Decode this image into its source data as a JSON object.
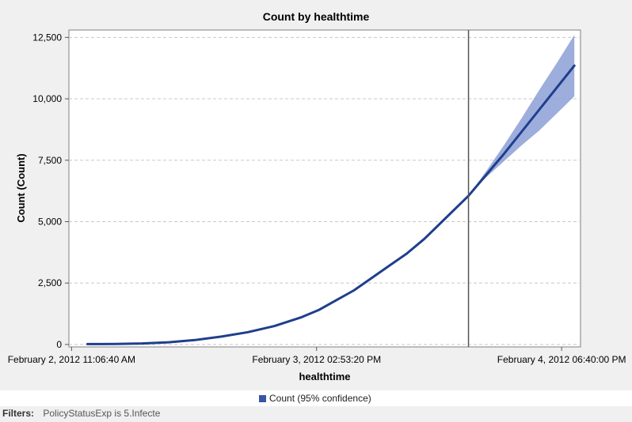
{
  "chart_data": {
    "type": "line",
    "title": "Count by healthtime",
    "xlabel": "healthtime",
    "ylabel": "Count (Count)",
    "y_ticks": [
      0,
      2500,
      5000,
      7500,
      10000,
      12500
    ],
    "y_tick_labels": [
      "0",
      "2,500",
      "5,000",
      "7,500",
      "10,000",
      "12,500"
    ],
    "ylim": [
      -100,
      12800
    ],
    "x_tick_labels": [
      "February 2, 2012 11:06:40 AM",
      "February 3, 2012 02:53:20 PM",
      "February 4, 2012 06:40:00 PM"
    ],
    "x_tick_hours": [
      0,
      27.78,
      55.56
    ],
    "xlim_hours": [
      -0.3,
      57.7
    ],
    "forecast_start_hours": 45,
    "grid": "horizontal-dashed",
    "legend_position": "bottom",
    "series": [
      {
        "name": "Count (95% confidence)",
        "color": "#1f3e8c",
        "band_color": "#8c9fd6",
        "x_hours": [
          1.8,
          5,
          8,
          11,
          14,
          17,
          20,
          23,
          26,
          28,
          30,
          32,
          34,
          36,
          38,
          40,
          42,
          44,
          45,
          47,
          49,
          51,
          53,
          55,
          57
        ],
        "values": [
          15,
          20,
          40,
          90,
          180,
          320,
          500,
          750,
          1100,
          1400,
          1800,
          2200,
          2700,
          3200,
          3700,
          4300,
          5000,
          5700,
          6050,
          6900,
          7750,
          8650,
          9550,
          10450,
          11350
        ],
        "lower": [
          null,
          null,
          null,
          null,
          null,
          null,
          null,
          null,
          null,
          null,
          null,
          null,
          null,
          null,
          null,
          null,
          null,
          null,
          6050,
          6800,
          7450,
          8100,
          8700,
          9400,
          10100
        ],
        "upper": [
          null,
          null,
          null,
          null,
          null,
          null,
          null,
          null,
          null,
          null,
          null,
          null,
          null,
          null,
          null,
          null,
          null,
          null,
          6050,
          7050,
          8100,
          9200,
          10350,
          11450,
          12600
        ]
      }
    ]
  },
  "legend": {
    "label": "Count (95% confidence)",
    "swatch_color": "#3a55a8"
  },
  "filters": {
    "label": "Filters:",
    "value": "PolicyStatusExp is 5.Infecte"
  }
}
